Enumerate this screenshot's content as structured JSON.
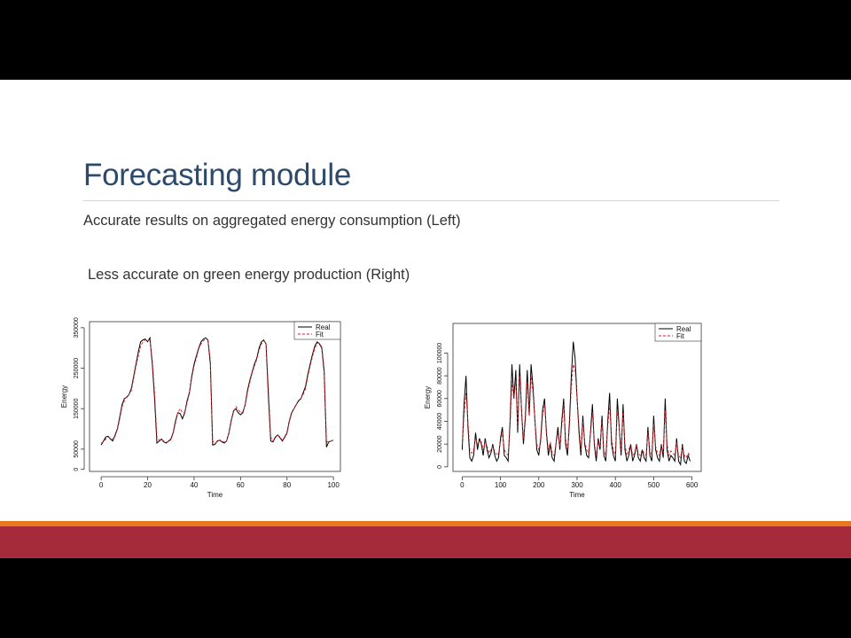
{
  "slide": {
    "title": "Forecasting module",
    "bullets": [
      "Accurate results on aggregated energy consumption (Left)",
      "Less accurate on green energy production (Right)"
    ]
  },
  "colors": {
    "title": "#2e4a6b",
    "real_line": "#000000",
    "fit_line": "#e01b24",
    "footer_orange": "#e8781e",
    "footer_red": "#a52a3a"
  },
  "chart_data": [
    {
      "type": "line",
      "xlabel": "Time",
      "ylabel": "Energy",
      "xlim": [
        -5,
        103
      ],
      "ylim": [
        -5000,
        365000
      ],
      "xticks": [
        0,
        20,
        40,
        60,
        80,
        100
      ],
      "yticks": [
        0,
        50000,
        150000,
        250000,
        350000
      ],
      "ytick_labels": [
        "0",
        "50000",
        "150000",
        "250000",
        "350000"
      ],
      "legend": {
        "position": "top-right",
        "entries": [
          "Real",
          "Fit"
        ]
      },
      "x": [
        0,
        1,
        2,
        3,
        4,
        5,
        6,
        7,
        8,
        9,
        10,
        11,
        12,
        13,
        14,
        15,
        16,
        17,
        18,
        19,
        20,
        21,
        22,
        23,
        24,
        25,
        26,
        27,
        28,
        29,
        30,
        31,
        32,
        33,
        34,
        35,
        36,
        37,
        38,
        39,
        40,
        41,
        42,
        43,
        44,
        45,
        46,
        47,
        48,
        49,
        50,
        51,
        52,
        53,
        54,
        55,
        56,
        57,
        58,
        59,
        60,
        61,
        62,
        63,
        64,
        65,
        66,
        67,
        68,
        69,
        70,
        71,
        72,
        73,
        74,
        75,
        76,
        77,
        78,
        79,
        80,
        81,
        82,
        83,
        84,
        85,
        86,
        87,
        88,
        89,
        90,
        91,
        92,
        93,
        94,
        95,
        96,
        97,
        98,
        99,
        100
      ],
      "series": [
        {
          "name": "Real",
          "values": [
            60000,
            70000,
            80000,
            82000,
            75000,
            70000,
            85000,
            100000,
            130000,
            160000,
            175000,
            178000,
            185000,
            200000,
            230000,
            260000,
            290000,
            315000,
            320000,
            322000,
            315000,
            325000,
            260000,
            175000,
            65000,
            70000,
            75000,
            68000,
            65000,
            70000,
            75000,
            90000,
            120000,
            140000,
            138000,
            125000,
            140000,
            170000,
            190000,
            230000,
            260000,
            280000,
            300000,
            315000,
            322000,
            325000,
            320000,
            260000,
            60000,
            62000,
            70000,
            72000,
            68000,
            65000,
            70000,
            90000,
            120000,
            145000,
            150000,
            140000,
            135000,
            140000,
            160000,
            195000,
            220000,
            240000,
            260000,
            275000,
            300000,
            315000,
            320000,
            310000,
            180000,
            70000,
            68000,
            80000,
            85000,
            78000,
            70000,
            80000,
            90000,
            120000,
            140000,
            150000,
            160000,
            170000,
            175000,
            190000,
            205000,
            235000,
            260000,
            285000,
            305000,
            315000,
            310000,
            300000,
            240000,
            55000,
            68000,
            70000,
            72000
          ]
        },
        {
          "name": "Fit",
          "values": [
            65000,
            68000,
            75000,
            80000,
            78000,
            74000,
            82000,
            98000,
            125000,
            155000,
            170000,
            180000,
            185000,
            195000,
            225000,
            255000,
            280000,
            305000,
            315000,
            320000,
            318000,
            320000,
            270000,
            190000,
            80000,
            72000,
            74000,
            70000,
            67000,
            68000,
            73000,
            88000,
            115000,
            140000,
            150000,
            140000,
            140000,
            165000,
            188000,
            225000,
            255000,
            275000,
            298000,
            310000,
            318000,
            322000,
            320000,
            270000,
            70000,
            65000,
            68000,
            73000,
            70000,
            67000,
            70000,
            88000,
            118000,
            142000,
            155000,
            148000,
            140000,
            142000,
            158000,
            190000,
            215000,
            238000,
            255000,
            272000,
            295000,
            310000,
            318000,
            312000,
            200000,
            80000,
            70000,
            78000,
            85000,
            80000,
            72000,
            78000,
            88000,
            118000,
            138000,
            150000,
            160000,
            168000,
            175000,
            186000,
            200000,
            230000,
            255000,
            280000,
            300000,
            312000,
            312000,
            302000,
            250000,
            70000,
            66000,
            70000,
            72000
          ]
        }
      ]
    },
    {
      "type": "line",
      "xlabel": "Time",
      "ylabel": "Energy",
      "xlim": [
        -24,
        624
      ],
      "ylim": [
        -4000,
        126000
      ],
      "xticks": [
        0,
        100,
        200,
        300,
        400,
        500,
        600
      ],
      "yticks": [
        0,
        20000,
        40000,
        60000,
        80000,
        100000
      ],
      "ytick_labels": [
        "0",
        "20000",
        "40000",
        "60000",
        "80000",
        "100000"
      ],
      "legend": {
        "position": "top-right",
        "entries": [
          "Real",
          "Fit"
        ]
      },
      "x": [
        0,
        5,
        10,
        15,
        20,
        25,
        30,
        35,
        40,
        45,
        50,
        55,
        60,
        65,
        70,
        75,
        80,
        85,
        90,
        95,
        100,
        105,
        110,
        115,
        120,
        125,
        130,
        135,
        140,
        145,
        150,
        155,
        160,
        165,
        170,
        175,
        180,
        185,
        190,
        195,
        200,
        205,
        210,
        215,
        220,
        225,
        230,
        235,
        240,
        245,
        250,
        255,
        260,
        265,
        270,
        275,
        280,
        285,
        290,
        295,
        300,
        305,
        310,
        315,
        320,
        325,
        330,
        335,
        340,
        345,
        350,
        355,
        360,
        365,
        370,
        375,
        380,
        385,
        390,
        395,
        400,
        405,
        410,
        415,
        420,
        425,
        430,
        435,
        440,
        445,
        450,
        455,
        460,
        465,
        470,
        475,
        480,
        485,
        490,
        495,
        500,
        505,
        510,
        515,
        520,
        525,
        530,
        535,
        540,
        545,
        550,
        555,
        560,
        565,
        570,
        575,
        580,
        585,
        590,
        595
      ],
      "series": [
        {
          "name": "Real",
          "values": [
            15000,
            55000,
            80000,
            35000,
            8000,
            5000,
            10000,
            30000,
            15000,
            25000,
            20000,
            10000,
            25000,
            15000,
            8000,
            12000,
            20000,
            10000,
            5000,
            8000,
            25000,
            35000,
            10000,
            8000,
            5000,
            40000,
            90000,
            60000,
            85000,
            30000,
            90000,
            50000,
            20000,
            45000,
            85000,
            45000,
            90000,
            70000,
            40000,
            15000,
            10000,
            25000,
            50000,
            60000,
            30000,
            10000,
            20000,
            8000,
            5000,
            20000,
            35000,
            15000,
            40000,
            60000,
            20000,
            10000,
            40000,
            80000,
            110000,
            95000,
            60000,
            30000,
            10000,
            45000,
            20000,
            10000,
            8000,
            30000,
            55000,
            20000,
            5000,
            25000,
            15000,
            45000,
            10000,
            5000,
            40000,
            65000,
            20000,
            10000,
            5000,
            60000,
            35000,
            10000,
            55000,
            15000,
            5000,
            10000,
            20000,
            5000,
            10000,
            20000,
            8000,
            5000,
            15000,
            8000,
            5000,
            35000,
            10000,
            5000,
            45000,
            15000,
            8000,
            5000,
            20000,
            8000,
            60000,
            15000,
            5000,
            10000,
            8000,
            5000,
            25000,
            5000,
            2000,
            20000,
            5000,
            3000,
            10000,
            5000
          ]
        },
        {
          "name": "Fit",
          "values": [
            20000,
            45000,
            65000,
            40000,
            15000,
            12000,
            15000,
            25000,
            20000,
            22000,
            22000,
            15000,
            22000,
            18000,
            12000,
            15000,
            18000,
            14000,
            10000,
            12000,
            22000,
            30000,
            15000,
            12000,
            10000,
            35000,
            75000,
            60000,
            75000,
            35000,
            80000,
            50000,
            25000,
            40000,
            75000,
            45000,
            80000,
            65000,
            40000,
            20000,
            15000,
            22000,
            45000,
            55000,
            32000,
            15000,
            22000,
            12000,
            10000,
            20000,
            30000,
            18000,
            35000,
            55000,
            25000,
            15000,
            35000,
            70000,
            90000,
            85000,
            60000,
            35000,
            15000,
            40000,
            22000,
            15000,
            12000,
            28000,
            48000,
            22000,
            10000,
            22000,
            18000,
            40000,
            15000,
            10000,
            35000,
            55000,
            25000,
            15000,
            10000,
            50000,
            35000,
            15000,
            48000,
            20000,
            10000,
            15000,
            20000,
            10000,
            12000,
            20000,
            12000,
            10000,
            15000,
            12000,
            10000,
            30000,
            15000,
            10000,
            38000,
            18000,
            12000,
            10000,
            20000,
            12000,
            50000,
            20000,
            10000,
            14000,
            12000,
            10000,
            22000,
            10000,
            8000,
            18000,
            10000,
            8000,
            12000,
            10000
          ]
        }
      ]
    }
  ]
}
